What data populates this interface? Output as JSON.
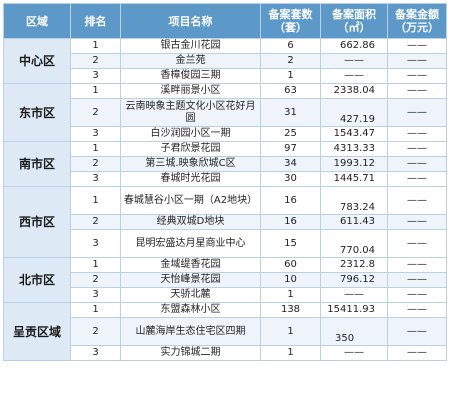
{
  "headers": {
    "region": "区域",
    "rank": "排名",
    "project": "项目名称",
    "count": "备案套数（套）",
    "area": "备案面积（㎡）",
    "amount": "备案金额（万元）"
  },
  "regions": [
    {
      "name": "中心区",
      "rows": [
        {
          "rank": "1",
          "project": "银古金川花园",
          "count": "6",
          "area": "662.86",
          "amount": "——"
        },
        {
          "rank": "2",
          "project": "金兰苑",
          "count": "2",
          "area": "——",
          "amount": "——"
        },
        {
          "rank": "3",
          "project": "香樟俊园三期",
          "count": "1",
          "area": "——",
          "amount": "——"
        }
      ]
    },
    {
      "name": "东市区",
      "rows": [
        {
          "rank": "1",
          "project": "溪畔丽景小区",
          "count": "63",
          "area": "2338.04",
          "amount": "——"
        },
        {
          "rank": "2",
          "project": "云南映象主题文化小区花好月圆",
          "count": "31",
          "area": "427.19",
          "amount": "——"
        },
        {
          "rank": "3",
          "project": "白沙润园小区一期",
          "count": "25",
          "area": "1543.47",
          "amount": "——"
        }
      ]
    },
    {
      "name": "南市区",
      "rows": [
        {
          "rank": "1",
          "project": "子君欣景花园",
          "count": "97",
          "area": "4313.33",
          "amount": "——"
        },
        {
          "rank": "2",
          "project": "第三城.映象欣城C区",
          "count": "34",
          "area": "1993.12",
          "amount": "——"
        },
        {
          "rank": "3",
          "project": "春城时光花园",
          "count": "30",
          "area": "1445.71",
          "amount": "——"
        }
      ]
    },
    {
      "name": "西市区",
      "rows": [
        {
          "rank": "1",
          "project": "春城慧谷小区一期（A2地块）",
          "count": "16",
          "area": "783.24",
          "amount": "——"
        },
        {
          "rank": "2",
          "project": "经典双城D地块",
          "count": "16",
          "area": "611.43",
          "amount": "——"
        },
        {
          "rank": "3",
          "project": "昆明宏盛达月星商业中心",
          "count": "15",
          "area": "770.04",
          "amount": "——"
        }
      ]
    },
    {
      "name": "北市区",
      "rows": [
        {
          "rank": "1",
          "project": "金域缇香花园",
          "count": "60",
          "area": "2312.8",
          "amount": "——"
        },
        {
          "rank": "2",
          "project": "天怡峰景花园",
          "count": "10",
          "area": "796.12",
          "amount": "——"
        },
        {
          "rank": "3",
          "project": "天骄北麓",
          "count": "1",
          "area": "——",
          "amount": "——"
        }
      ]
    },
    {
      "name": "呈贡区域",
      "rows": [
        {
          "rank": "1",
          "project": "东盟森林小区",
          "count": "138",
          "area": "15411.93",
          "amount": "——"
        },
        {
          "rank": "2",
          "project": "山麓海岸生态住宅区四期",
          "count": "1",
          "area": "350",
          "amount": "——"
        },
        {
          "rank": "3",
          "project": "实力锦城二期",
          "count": "1",
          "area": "——",
          "amount": "——"
        }
      ]
    }
  ]
}
